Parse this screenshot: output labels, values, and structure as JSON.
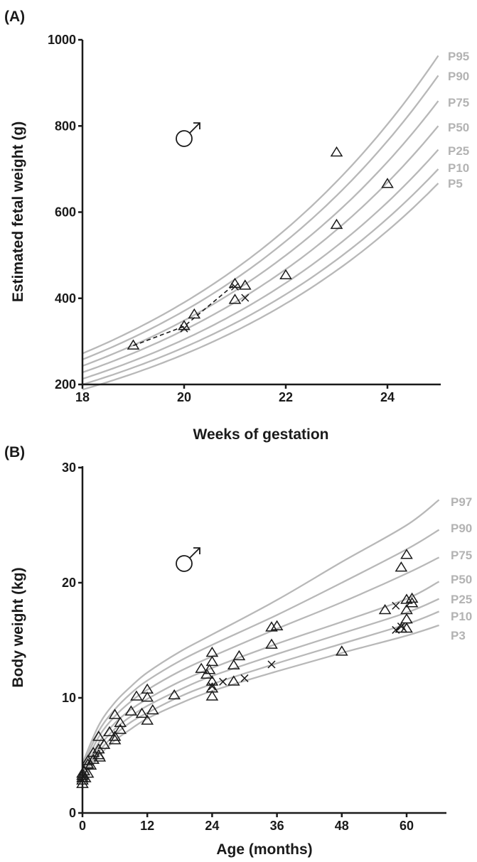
{
  "chart_data": [
    {
      "panel": "(A)",
      "type": "scatter",
      "xlabel": "Weeks of gestation",
      "ylabel": "Estimated fetal weight (g)",
      "xlim": [
        18,
        25
      ],
      "ylim": [
        200,
        1000
      ],
      "xticks": [
        "18",
        "20",
        "22",
        "24"
      ],
      "yticks": [
        "200",
        "400",
        "600",
        "800",
        "1000"
      ],
      "symbol": "♂",
      "percentiles": [
        {
          "name": "P95",
          "start": 272,
          "end": 963
        },
        {
          "name": "P90",
          "start": 258,
          "end": 917
        },
        {
          "name": "P75",
          "start": 243,
          "end": 858
        },
        {
          "name": "P50",
          "start": 228,
          "end": 800
        },
        {
          "name": "P25",
          "start": 213,
          "end": 745
        },
        {
          "name": "P10",
          "start": 200,
          "end": 700
        },
        {
          "name": "P5",
          "start": 188,
          "end": 667
        }
      ],
      "triangles": [
        [
          19,
          290
        ],
        [
          20,
          335
        ],
        [
          20.2,
          362
        ],
        [
          21,
          433
        ],
        [
          21,
          396
        ],
        [
          21.2,
          429
        ],
        [
          22,
          453
        ],
        [
          23,
          738
        ],
        [
          23,
          570
        ],
        [
          24,
          665
        ]
      ],
      "crosses": [
        [
          20,
          330
        ],
        [
          21,
          427
        ],
        [
          21.2,
          401
        ]
      ],
      "dashed_trend": [
        [
          19,
          290
        ],
        [
          20,
          335
        ],
        [
          21,
          433
        ]
      ]
    },
    {
      "panel": "(B)",
      "type": "scatter",
      "xlabel": "Age (months)",
      "ylabel": "Body weight (kg)",
      "xlim": [
        0,
        66
      ],
      "ylim": [
        0,
        30
      ],
      "xticks": [
        "0",
        "12",
        "24",
        "36",
        "48",
        "60"
      ],
      "yticks": [
        "0",
        "10",
        "20",
        "30"
      ],
      "symbol": "♂",
      "percentiles": [
        {
          "name": "P97",
          "points": [
            [
              0,
              4.3
            ],
            [
              3,
              7.6
            ],
            [
              6,
              9.6
            ],
            [
              9,
              11.0
            ],
            [
              12,
              12.2
            ],
            [
              18,
              14.0
            ],
            [
              24,
              15.5
            ],
            [
              36,
              18.5
            ],
            [
              48,
              21.8
            ],
            [
              60,
              25.0
            ],
            [
              66,
              27.2
            ]
          ]
        },
        {
          "name": "P90",
          "points": [
            [
              0,
              4.0
            ],
            [
              3,
              7.1
            ],
            [
              6,
              9.0
            ],
            [
              9,
              10.4
            ],
            [
              12,
              11.5
            ],
            [
              18,
              13.2
            ],
            [
              24,
              14.6
            ],
            [
              36,
              17.2
            ],
            [
              48,
              20.0
            ],
            [
              60,
              22.9
            ],
            [
              66,
              24.6
            ]
          ]
        },
        {
          "name": "P75",
          "points": [
            [
              0,
              3.7
            ],
            [
              3,
              6.6
            ],
            [
              6,
              8.4
            ],
            [
              9,
              9.7
            ],
            [
              12,
              10.7
            ],
            [
              18,
              12.3
            ],
            [
              24,
              13.6
            ],
            [
              36,
              16.0
            ],
            [
              48,
              18.3
            ],
            [
              60,
              20.8
            ],
            [
              66,
              22.2
            ]
          ]
        },
        {
          "name": "P50",
          "points": [
            [
              0,
              3.4
            ],
            [
              3,
              6.1
            ],
            [
              6,
              7.8
            ],
            [
              9,
              9.0
            ],
            [
              12,
              9.9
            ],
            [
              18,
              11.4
            ],
            [
              24,
              12.6
            ],
            [
              36,
              14.7
            ],
            [
              48,
              16.6
            ],
            [
              60,
              18.6
            ],
            [
              66,
              20.1
            ]
          ]
        },
        {
          "name": "P25",
          "points": [
            [
              0,
              3.2
            ],
            [
              3,
              5.7
            ],
            [
              6,
              7.3
            ],
            [
              9,
              8.4
            ],
            [
              12,
              9.3
            ],
            [
              18,
              10.7
            ],
            [
              24,
              11.9
            ],
            [
              36,
              13.8
            ],
            [
              48,
              15.6
            ],
            [
              60,
              17.4
            ],
            [
              66,
              18.6
            ]
          ]
        },
        {
          "name": "P10",
          "points": [
            [
              0,
              3.0
            ],
            [
              3,
              5.3
            ],
            [
              6,
              6.8
            ],
            [
              9,
              7.9
            ],
            [
              12,
              8.7
            ],
            [
              18,
              10.1
            ],
            [
              24,
              11.2
            ],
            [
              36,
              13.0
            ],
            [
              48,
              14.7
            ],
            [
              60,
              16.4
            ],
            [
              66,
              17.5
            ]
          ]
        },
        {
          "name": "P3",
          "points": [
            [
              0,
              2.7
            ],
            [
              3,
              4.9
            ],
            [
              6,
              6.3
            ],
            [
              9,
              7.3
            ],
            [
              12,
              8.2
            ],
            [
              18,
              9.5
            ],
            [
              24,
              10.6
            ],
            [
              36,
              12.3
            ],
            [
              48,
              13.9
            ],
            [
              60,
              15.4
            ],
            [
              66,
              16.3
            ]
          ]
        }
      ],
      "triangles": [
        [
          0,
          3.4
        ],
        [
          0,
          3.2
        ],
        [
          0,
          3.0
        ],
        [
          0,
          2.8
        ],
        [
          0,
          2.5
        ],
        [
          0.3,
          3.6
        ],
        [
          0.5,
          3.0
        ],
        [
          1,
          4.5
        ],
        [
          1,
          4.2
        ],
        [
          1,
          3.4
        ],
        [
          1.5,
          4.1
        ],
        [
          2,
          5.2
        ],
        [
          2,
          4.6
        ],
        [
          3,
          6.6
        ],
        [
          3,
          5.5
        ],
        [
          3,
          5.0
        ],
        [
          3.2,
          4.8
        ],
        [
          4,
          5.9
        ],
        [
          5,
          7.0
        ],
        [
          6,
          8.5
        ],
        [
          6,
          6.6
        ],
        [
          6,
          6.3
        ],
        [
          7,
          7.2
        ],
        [
          7,
          7.8
        ],
        [
          9,
          8.8
        ],
        [
          10,
          10.1
        ],
        [
          11,
          8.6
        ],
        [
          12,
          10.7
        ],
        [
          12,
          10.0
        ],
        [
          12,
          8.0
        ],
        [
          13,
          8.9
        ],
        [
          17,
          10.2
        ],
        [
          22,
          12.5
        ],
        [
          23,
          12.0
        ],
        [
          23.5,
          12.4
        ],
        [
          24,
          13.9
        ],
        [
          24,
          13.1
        ],
        [
          24,
          11.4
        ],
        [
          24,
          10.8
        ],
        [
          24,
          10.1
        ],
        [
          28,
          12.8
        ],
        [
          28,
          11.4
        ],
        [
          29,
          13.6
        ],
        [
          35,
          16.1
        ],
        [
          35,
          14.6
        ],
        [
          36,
          16.2
        ],
        [
          48,
          14.0
        ],
        [
          56,
          17.6
        ],
        [
          59,
          21.3
        ],
        [
          59,
          16.0
        ],
        [
          60,
          22.4
        ],
        [
          60,
          18.5
        ],
        [
          60,
          17.6
        ],
        [
          60,
          16.8
        ],
        [
          60,
          16.0
        ],
        [
          61,
          18.6
        ],
        [
          61,
          18.2
        ]
      ],
      "crosses": [
        [
          24,
          11.0
        ],
        [
          26,
          11.4
        ],
        [
          30,
          11.7
        ],
        [
          35,
          12.9
        ],
        [
          58,
          18.0
        ],
        [
          58,
          15.9
        ],
        [
          59,
          16.2
        ]
      ]
    }
  ]
}
